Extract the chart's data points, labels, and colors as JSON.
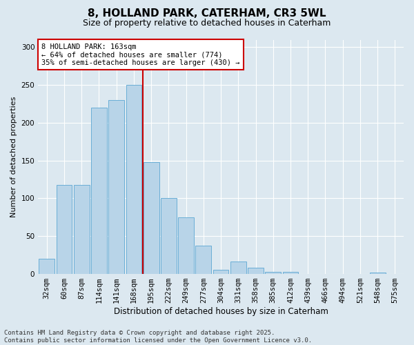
{
  "title1": "8, HOLLAND PARK, CATERHAM, CR3 5WL",
  "title2": "Size of property relative to detached houses in Caterham",
  "xlabel": "Distribution of detached houses by size in Caterham",
  "ylabel": "Number of detached properties",
  "categories": [
    "32sqm",
    "60sqm",
    "87sqm",
    "114sqm",
    "141sqm",
    "168sqm",
    "195sqm",
    "222sqm",
    "249sqm",
    "277sqm",
    "304sqm",
    "331sqm",
    "358sqm",
    "385sqm",
    "412sqm",
    "439sqm",
    "466sqm",
    "494sqm",
    "521sqm",
    "548sqm",
    "575sqm"
  ],
  "values": [
    20,
    118,
    118,
    220,
    230,
    250,
    148,
    100,
    75,
    37,
    5,
    16,
    8,
    2,
    2,
    0,
    0,
    0,
    0,
    1,
    0
  ],
  "bar_color": "#b8d4e8",
  "bar_edge_color": "#6aaed6",
  "vline_x_idx": 5,
  "vline_color": "#cc0000",
  "annotation_text": "8 HOLLAND PARK: 163sqm\n← 64% of detached houses are smaller (774)\n35% of semi-detached houses are larger (430) →",
  "annotation_box_facecolor": "#ffffff",
  "annotation_box_edgecolor": "#cc0000",
  "ylim": [
    0,
    310
  ],
  "yticks": [
    0,
    50,
    100,
    150,
    200,
    250,
    300
  ],
  "background_color": "#dce8f0",
  "footer": "Contains HM Land Registry data © Crown copyright and database right 2025.\nContains public sector information licensed under the Open Government Licence v3.0.",
  "title1_fontsize": 11,
  "title2_fontsize": 9,
  "xlabel_fontsize": 8.5,
  "ylabel_fontsize": 8,
  "tick_fontsize": 7.5,
  "annot_fontsize": 7.5,
  "footer_fontsize": 6.5
}
